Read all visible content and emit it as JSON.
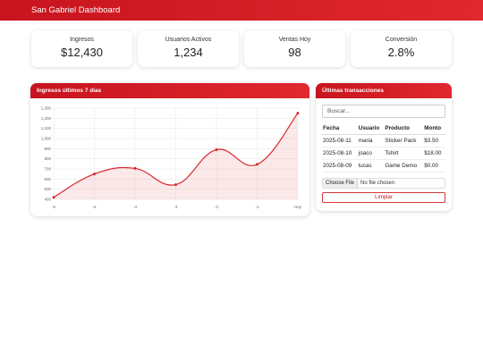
{
  "app": {
    "title": "San Gabriel Dashboard"
  },
  "kpis": [
    {
      "label": "Ingresos",
      "value": "$12,430"
    },
    {
      "label": "Usuarios Activos",
      "value": "1,234"
    },
    {
      "label": "Ventas Hoy",
      "value": "98"
    },
    {
      "label": "Conversión",
      "value": "2.8%"
    }
  ],
  "chart_panel": {
    "title": "Ingresos últimos 7 días"
  },
  "chart_data": {
    "type": "line",
    "categories": [
      "-6",
      "-5",
      "-4",
      "-3",
      "-2",
      "-1",
      "Hoy"
    ],
    "values": [
      420,
      650,
      705,
      545,
      890,
      745,
      1250
    ],
    "ylim": [
      400,
      1300
    ],
    "yticks": [
      "400",
      "500",
      "600",
      "700",
      "800",
      "900",
      "1,000",
      "1,100",
      "1,200",
      "1,300"
    ],
    "fill": true,
    "grid": true,
    "line_color": "#d9262c"
  },
  "transactions": {
    "title": "Últimas transacciones",
    "search_placeholder": "Buscar...",
    "columns": [
      "Fecha",
      "Usuario",
      "Producto",
      "Monto"
    ],
    "rows": [
      [
        "2025-08-11",
        "maria",
        "Sticker Pack",
        "$3.50"
      ],
      [
        "2025-08-10",
        "joaco",
        "Tshirt",
        "$18.00"
      ],
      [
        "2025-08-09",
        "lucas",
        "Game Demo",
        "$0.00"
      ]
    ],
    "file_button": "Choose File",
    "file_status": "No file chosen",
    "clear_label": "Limpiar"
  },
  "colors": {
    "accent": "#d9262c"
  }
}
